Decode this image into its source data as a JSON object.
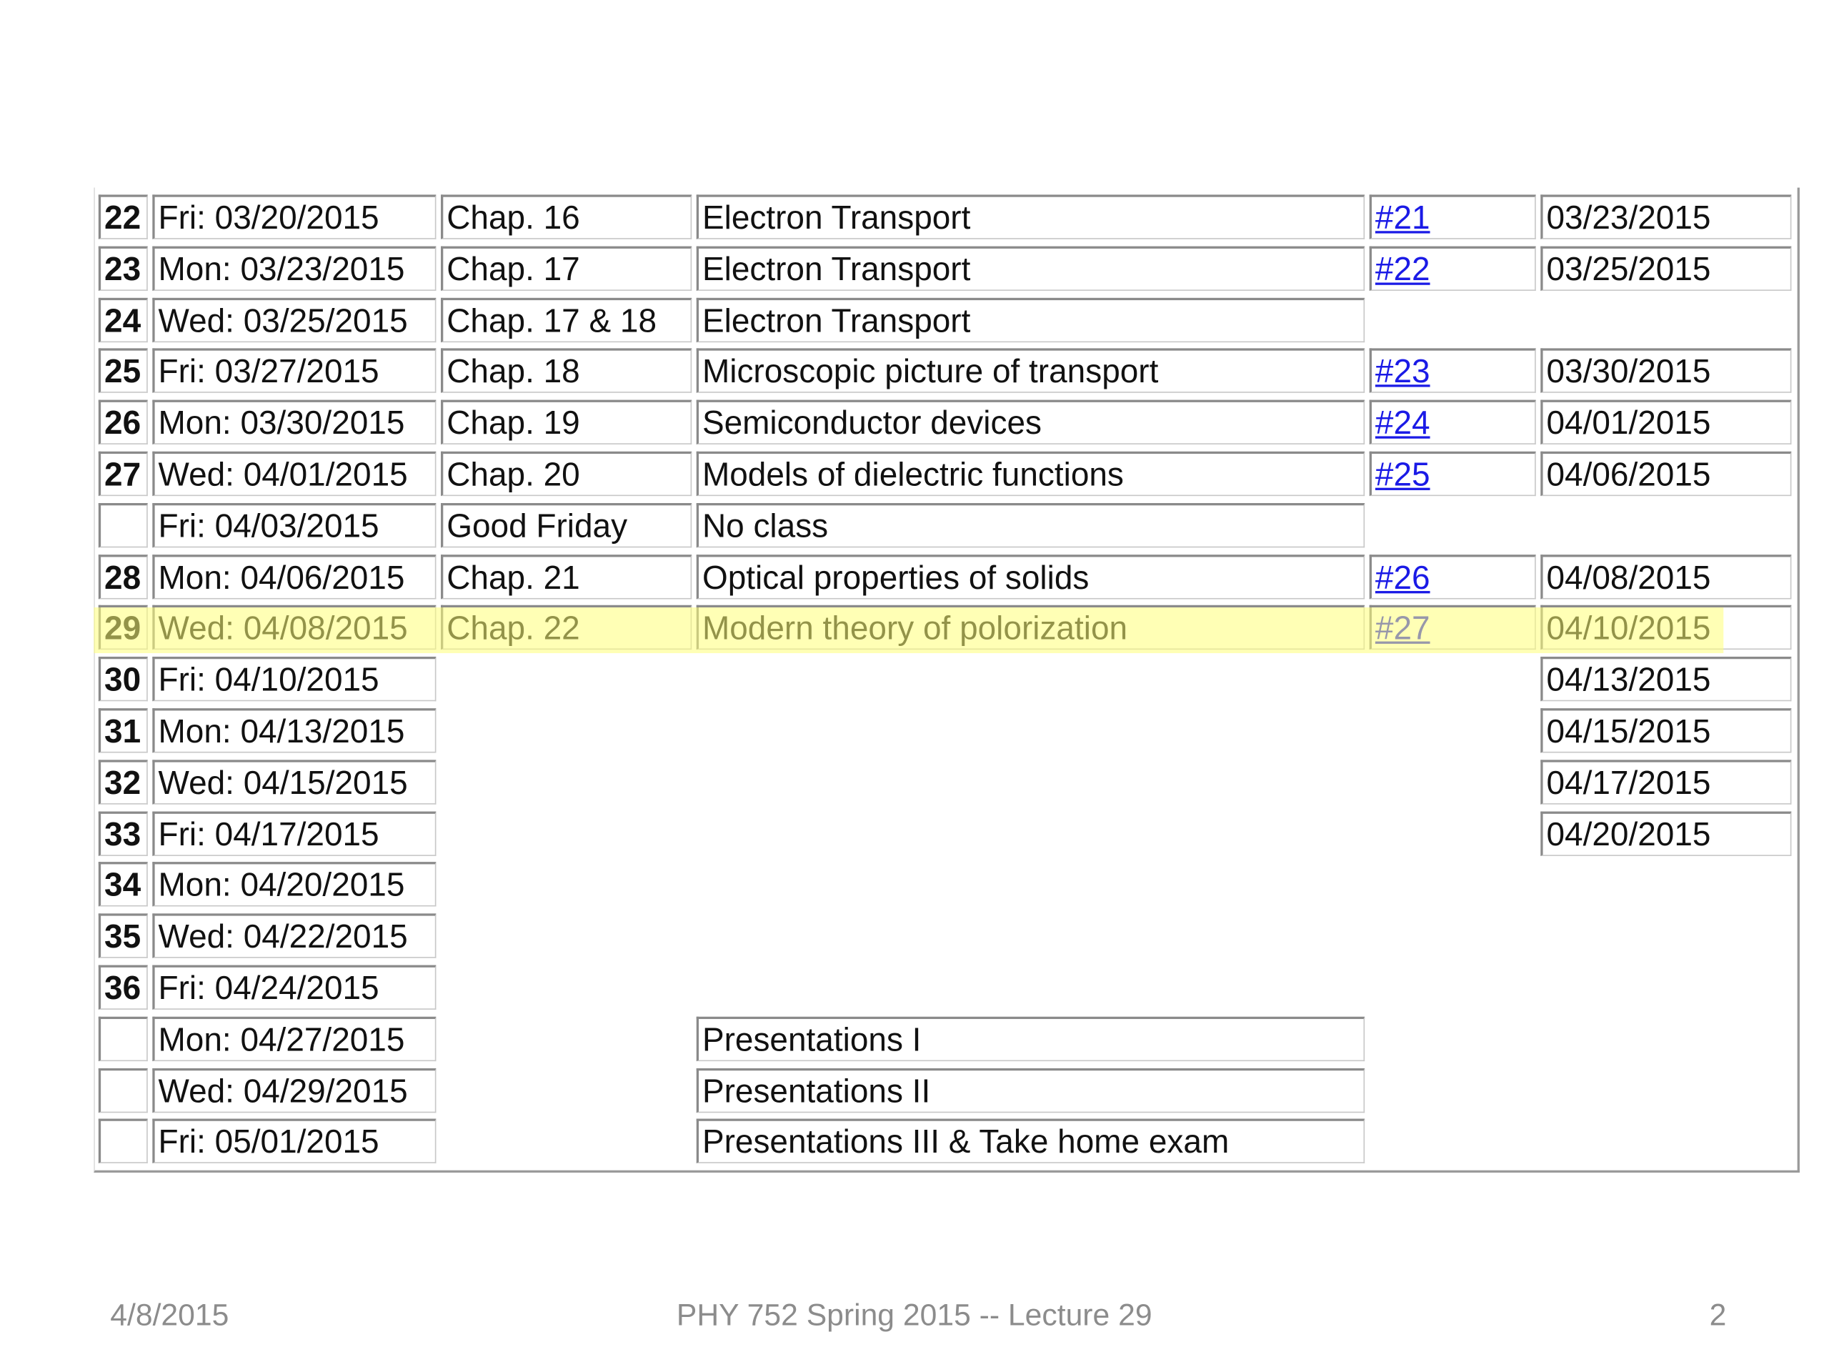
{
  "schedule": {
    "rows": [
      {
        "num": "22",
        "date": "Fri: 03/20/2015",
        "chapter": "Chap. 16",
        "topic": "Electron Transport",
        "hw": "#21",
        "due": "03/23/2015"
      },
      {
        "num": "23",
        "date": "Mon: 03/23/2015",
        "chapter": "Chap. 17",
        "topic": "Electron Transport",
        "hw": "#22",
        "due": "03/25/2015"
      },
      {
        "num": "24",
        "date": "Wed: 03/25/2015",
        "chapter": "Chap. 17 & 18",
        "topic": "Electron Transport"
      },
      {
        "num": "25",
        "date": "Fri: 03/27/2015",
        "chapter": "Chap. 18",
        "topic": "Microscopic picture of transport",
        "hw": "#23",
        "due": "03/30/2015"
      },
      {
        "num": "26",
        "date": "Mon: 03/30/2015",
        "chapter": "Chap. 19",
        "topic": "Semiconductor devices",
        "hw": "#24",
        "due": "04/01/2015"
      },
      {
        "num": "27",
        "date": "Wed: 04/01/2015",
        "chapter": "Chap. 20",
        "topic": "Models of dielectric functions",
        "hw": "#25",
        "due": "04/06/2015"
      },
      {
        "num": "",
        "date": "Fri: 04/03/2015",
        "chapter": "Good Friday",
        "topic": "No class"
      },
      {
        "num": "28",
        "date": "Mon: 04/06/2015",
        "chapter": "Chap. 21",
        "topic": "Optical properties of solids",
        "hw": "#26",
        "due": "04/08/2015"
      },
      {
        "num": "29",
        "date": "Wed: 04/08/2015",
        "chapter": "Chap. 22",
        "topic": "Modern theory of polorization",
        "hw": "#27",
        "due": "04/10/2015",
        "highlighted": true
      },
      {
        "num": "30",
        "date": "Fri: 04/10/2015",
        "due": "04/13/2015"
      },
      {
        "num": "31",
        "date": "Mon: 04/13/2015",
        "due": "04/15/2015"
      },
      {
        "num": "32",
        "date": "Wed: 04/15/2015",
        "due": "04/17/2015"
      },
      {
        "num": "33",
        "date": "Fri: 04/17/2015",
        "due": "04/20/2015"
      },
      {
        "num": "34",
        "date": "Mon: 04/20/2015"
      },
      {
        "num": "35",
        "date": "Wed: 04/22/2015"
      },
      {
        "num": "36",
        "date": "Fri: 04/24/2015"
      },
      {
        "num": "",
        "date": "Mon: 04/27/2015",
        "topic": "Presentations I"
      },
      {
        "num": "",
        "date": "Wed: 04/29/2015",
        "topic": "Presentations II"
      },
      {
        "num": "",
        "date": "Fri: 05/01/2015",
        "topic": "Presentations III & Take home exam"
      }
    ]
  },
  "footer": {
    "date": "4/8/2015",
    "title": "PHY 752  Spring 2015 -- Lecture 29",
    "page": "2"
  },
  "colors": {
    "link": "#1a1ae6",
    "highlight": "#ffff78"
  }
}
